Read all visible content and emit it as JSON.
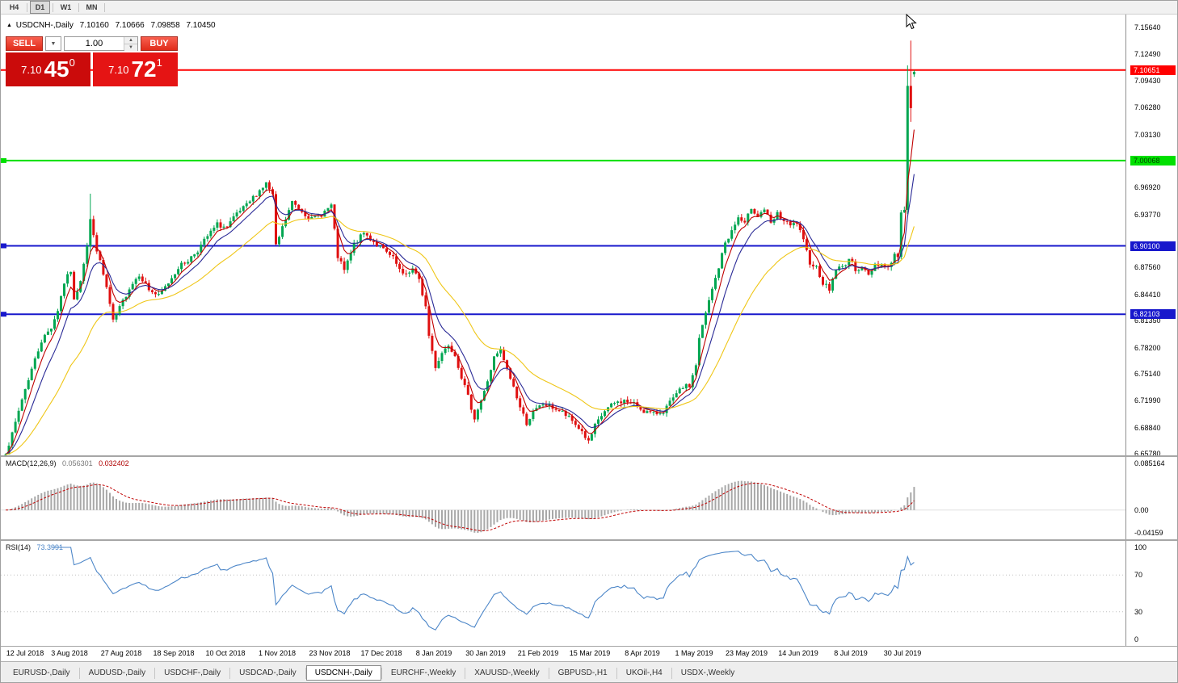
{
  "toolbar": {
    "timeframes": [
      {
        "label": "H4",
        "active": false
      },
      {
        "label": "D1",
        "active": true
      },
      {
        "label": "W1",
        "active": false
      },
      {
        "label": "MN",
        "active": false
      }
    ]
  },
  "chart_header": {
    "symbol": "USDCNH-,Daily",
    "open": "7.10160",
    "high": "7.10666",
    "low": "7.09858",
    "close": "7.10450"
  },
  "trade_panel": {
    "sell_label": "SELL",
    "buy_label": "BUY",
    "volume": "1.00",
    "sell_price": {
      "small": "7.10",
      "big": "45",
      "sup": "0"
    },
    "buy_price": {
      "small": "7.10",
      "big": "72",
      "sup": "1"
    },
    "sell_box_color": "#cb0b0b",
    "buy_box_color": "#e51414"
  },
  "indicators": {
    "macd": {
      "name": "MACD(12,26,9)",
      "value_main": "0.056301",
      "value_signal": "0.032402",
      "scale": [
        "0.085164",
        "0.00",
        "-0.04159"
      ]
    },
    "rsi": {
      "name": "RSI(14)",
      "value": "73.3991",
      "scale": [
        "100",
        "70",
        "30",
        "0"
      ]
    }
  },
  "price_scale": {
    "ticks": [
      "7.15640",
      "7.12490",
      "7.09430",
      "7.06280",
      "7.03130",
      "6.96920",
      "6.93770",
      "6.87560",
      "6.84410",
      "6.81350",
      "6.78200",
      "6.75140",
      "6.71990",
      "6.68840",
      "6.65780"
    ]
  },
  "tabs": {
    "active_index": 4,
    "items": [
      "EURUSD-,Daily",
      "AUDUSD-,Daily",
      "USDCHF-,Daily",
      "USDCAD-,Daily",
      "USDCNH-,Daily",
      "EURCHF-,Weekly",
      "XAUUSD-,Weekly",
      "GBPUSD-,H1",
      "UKOil-,H4",
      "USDX-,Weekly"
    ]
  },
  "chart_data": {
    "type": "candlestick",
    "symbol": "USDCNH",
    "timeframe": "Daily",
    "title": "USDCNH-,Daily",
    "last_candle": {
      "open": 7.1016,
      "high": 7.10666,
      "low": 7.09858,
      "close": 7.1045
    },
    "y_range": {
      "top": 7.1715,
      "bottom": 6.656
    },
    "candle_count": 280,
    "seed": 7,
    "noise": 0.006,
    "wick": 0.0045,
    "colors": {
      "up": "#00A651",
      "down": "#E01010",
      "macd_hist": "#A8A8A8",
      "macd_signal": "#C00000",
      "rsi_line": "#4C86C8",
      "rsi_level": "#C0C0C0"
    },
    "hlines": [
      {
        "price": 7.10651,
        "label": "7.10651",
        "color": "#FF0000",
        "badge_text": "#FFFFFF",
        "edge_mark": false
      },
      {
        "price": 7.00068,
        "label": "7.00068",
        "color": "#00E000",
        "badge_text": "#004000",
        "edge_mark": true
      },
      {
        "price": 6.901,
        "label": "6.90100",
        "color": "#1818CC",
        "badge_text": "#FFFFFF",
        "edge_mark": true
      },
      {
        "price": 6.82103,
        "label": "6.82103",
        "color": "#1818CC",
        "badge_text": "#FFFFFF",
        "edge_mark": true
      }
    ],
    "ma_lines": [
      {
        "period": 5,
        "color": "#C00000"
      },
      {
        "period": 10,
        "color": "#2A2A96"
      },
      {
        "period": 30,
        "color": "#EFC617"
      }
    ],
    "macd": {
      "fast": 12,
      "slow": 26,
      "signal": 9,
      "scale_top": 0.085164,
      "scale_bottom": -0.04159
    },
    "rsi": {
      "period": 14,
      "levels": [
        70,
        30
      ]
    },
    "wick_overrides": {
      "26": [
        6.962,
        6.891
      ],
      "277": [
        7.112,
        6.938
      ],
      "278": [
        7.141,
        7.046
      ]
    },
    "close_anchors": [
      [
        0,
        6.66
      ],
      [
        2,
        6.68
      ],
      [
        5,
        6.722
      ],
      [
        8,
        6.757
      ],
      [
        11,
        6.79
      ],
      [
        14,
        6.806
      ],
      [
        16,
        6.826
      ],
      [
        18,
        6.858
      ],
      [
        20,
        6.872
      ],
      [
        21,
        6.836
      ],
      [
        23,
        6.862
      ],
      [
        25,
        6.902
      ],
      [
        26,
        6.932
      ],
      [
        27,
        6.912
      ],
      [
        29,
        6.882
      ],
      [
        31,
        6.852
      ],
      [
        33,
        6.812
      ],
      [
        35,
        6.828
      ],
      [
        38,
        6.852
      ],
      [
        41,
        6.868
      ],
      [
        44,
        6.85
      ],
      [
        47,
        6.842
      ],
      [
        50,
        6.858
      ],
      [
        53,
        6.876
      ],
      [
        56,
        6.884
      ],
      [
        59,
        6.896
      ],
      [
        62,
        6.912
      ],
      [
        65,
        6.926
      ],
      [
        68,
        6.922
      ],
      [
        71,
        6.938
      ],
      [
        74,
        6.948
      ],
      [
        77,
        6.962
      ],
      [
        80,
        6.974
      ],
      [
        82,
        6.96
      ],
      [
        83,
        6.9
      ],
      [
        85,
        6.922
      ],
      [
        88,
        6.952
      ],
      [
        91,
        6.942
      ],
      [
        94,
        6.932
      ],
      [
        97,
        6.938
      ],
      [
        100,
        6.948
      ],
      [
        102,
        6.888
      ],
      [
        104,
        6.872
      ],
      [
        107,
        6.902
      ],
      [
        110,
        6.916
      ],
      [
        113,
        6.906
      ],
      [
        116,
        6.896
      ],
      [
        119,
        6.886
      ],
      [
        122,
        6.866
      ],
      [
        125,
        6.874
      ],
      [
        127,
        6.86
      ],
      [
        129,
        6.83
      ],
      [
        130,
        6.796
      ],
      [
        132,
        6.76
      ],
      [
        134,
        6.776
      ],
      [
        136,
        6.786
      ],
      [
        138,
        6.774
      ],
      [
        140,
        6.748
      ],
      [
        142,
        6.724
      ],
      [
        144,
        6.7
      ],
      [
        147,
        6.73
      ],
      [
        150,
        6.77
      ],
      [
        152,
        6.778
      ],
      [
        154,
        6.756
      ],
      [
        156,
        6.736
      ],
      [
        158,
        6.712
      ],
      [
        160,
        6.694
      ],
      [
        162,
        6.706
      ],
      [
        165,
        6.716
      ],
      [
        168,
        6.712
      ],
      [
        171,
        6.706
      ],
      [
        174,
        6.696
      ],
      [
        177,
        6.684
      ],
      [
        179,
        6.671
      ],
      [
        181,
        6.69
      ],
      [
        184,
        6.708
      ],
      [
        187,
        6.717
      ],
      [
        190,
        6.72
      ],
      [
        193,
        6.716
      ],
      [
        196,
        6.708
      ],
      [
        199,
        6.704
      ],
      [
        202,
        6.708
      ],
      [
        205,
        6.722
      ],
      [
        208,
        6.736
      ],
      [
        210,
        6.737
      ],
      [
        212,
        6.762
      ],
      [
        213,
        6.792
      ],
      [
        215,
        6.822
      ],
      [
        217,
        6.85
      ],
      [
        219,
        6.876
      ],
      [
        221,
        6.905
      ],
      [
        223,
        6.918
      ],
      [
        225,
        6.934
      ],
      [
        227,
        6.926
      ],
      [
        229,
        6.946
      ],
      [
        231,
        6.936
      ],
      [
        233,
        6.944
      ],
      [
        235,
        6.926
      ],
      [
        237,
        6.938
      ],
      [
        239,
        6.93
      ],
      [
        241,
        6.924
      ],
      [
        243,
        6.928
      ],
      [
        245,
        6.906
      ],
      [
        247,
        6.882
      ],
      [
        249,
        6.876
      ],
      [
        251,
        6.858
      ],
      [
        253,
        6.85
      ],
      [
        255,
        6.874
      ],
      [
        257,
        6.876
      ],
      [
        259,
        6.886
      ],
      [
        261,
        6.874
      ],
      [
        263,
        6.876
      ],
      [
        265,
        6.866
      ],
      [
        267,
        6.88
      ],
      [
        269,
        6.88
      ],
      [
        271,
        6.876
      ],
      [
        273,
        6.89
      ],
      [
        274,
        6.888
      ],
      [
        275,
        6.94
      ],
      [
        276,
        6.943
      ],
      [
        277,
        7.088
      ],
      [
        278,
        7.062
      ],
      [
        279,
        7.1045
      ]
    ],
    "date_labels": [
      [
        2,
        "12 Jul 2018"
      ],
      [
        18,
        "3 Aug 2018"
      ],
      [
        34,
        "27 Aug 2018"
      ],
      [
        50,
        "18 Sep 2018"
      ],
      [
        66,
        "10 Oct 2018"
      ],
      [
        82,
        "1 Nov 2018"
      ],
      [
        98,
        "23 Nov 2018"
      ],
      [
        114,
        "17 Dec 2018"
      ],
      [
        130,
        "8 Jan 2019"
      ],
      [
        146,
        "30 Jan 2019"
      ],
      [
        162,
        "21 Feb 2019"
      ],
      [
        178,
        "15 Mar 2019"
      ],
      [
        194,
        "8 Apr 2019"
      ],
      [
        210,
        "1 May 2019"
      ],
      [
        226,
        "23 May 2019"
      ],
      [
        242,
        "14 Jun 2019"
      ],
      [
        258,
        "8 Jul 2019"
      ],
      [
        274,
        "30 Jul 2019"
      ]
    ]
  }
}
